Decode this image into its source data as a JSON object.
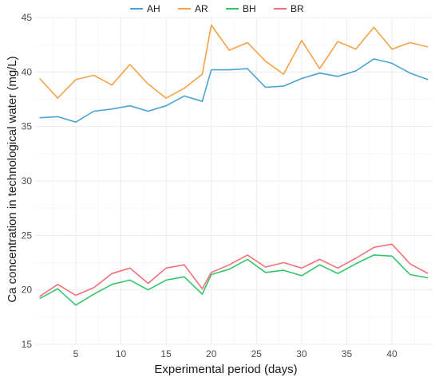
{
  "chart_data": {
    "type": "line",
    "title": "",
    "xlabel": "Experimental period (days)",
    "ylabel": "Ca concentration in technological water  (mg/L)",
    "xlim": [
      0.5,
      44.5
    ],
    "ylim": [
      15,
      45
    ],
    "x_ticks": [
      5,
      10,
      15,
      20,
      25,
      30,
      35,
      40
    ],
    "y_ticks": [
      15,
      20,
      25,
      30,
      35,
      40,
      45
    ],
    "grid": true,
    "legend_position": "top",
    "x": [
      1,
      3,
      5,
      7,
      9,
      11,
      13,
      15,
      17,
      19,
      20,
      22,
      24,
      26,
      28,
      30,
      32,
      34,
      36,
      38,
      40,
      42,
      44
    ],
    "series": [
      {
        "name": "AH",
        "color": "#4aa3d5",
        "values": [
          35.8,
          35.9,
          35.4,
          36.4,
          36.6,
          36.9,
          36.4,
          36.9,
          37.8,
          37.3,
          40.2,
          40.2,
          40.3,
          38.6,
          38.7,
          39.4,
          39.9,
          39.6,
          40.1,
          41.2,
          40.8,
          39.9,
          39.3
        ]
      },
      {
        "name": "AR",
        "color": "#f5a34a",
        "values": [
          39.4,
          37.6,
          39.3,
          39.7,
          38.8,
          40.7,
          38.9,
          37.6,
          38.5,
          39.8,
          44.3,
          42.0,
          42.7,
          41.0,
          39.8,
          42.9,
          40.3,
          42.8,
          42.1,
          44.1,
          42.1,
          42.7,
          42.3
        ]
      },
      {
        "name": "BH",
        "color": "#35c56a",
        "values": [
          19.2,
          20.1,
          18.6,
          19.6,
          20.5,
          20.9,
          20.0,
          20.9,
          21.2,
          19.6,
          21.4,
          21.9,
          22.8,
          21.6,
          21.8,
          21.3,
          22.3,
          21.5,
          22.4,
          23.2,
          23.1,
          21.4,
          21.1
        ]
      },
      {
        "name": "BR",
        "color": "#f2717a",
        "values": [
          19.4,
          20.5,
          19.5,
          20.2,
          21.5,
          22.0,
          20.6,
          22.0,
          22.3,
          20.1,
          21.6,
          22.3,
          23.2,
          22.1,
          22.5,
          22.0,
          22.8,
          22.0,
          22.9,
          23.9,
          24.2,
          22.4,
          21.5
        ]
      }
    ]
  }
}
